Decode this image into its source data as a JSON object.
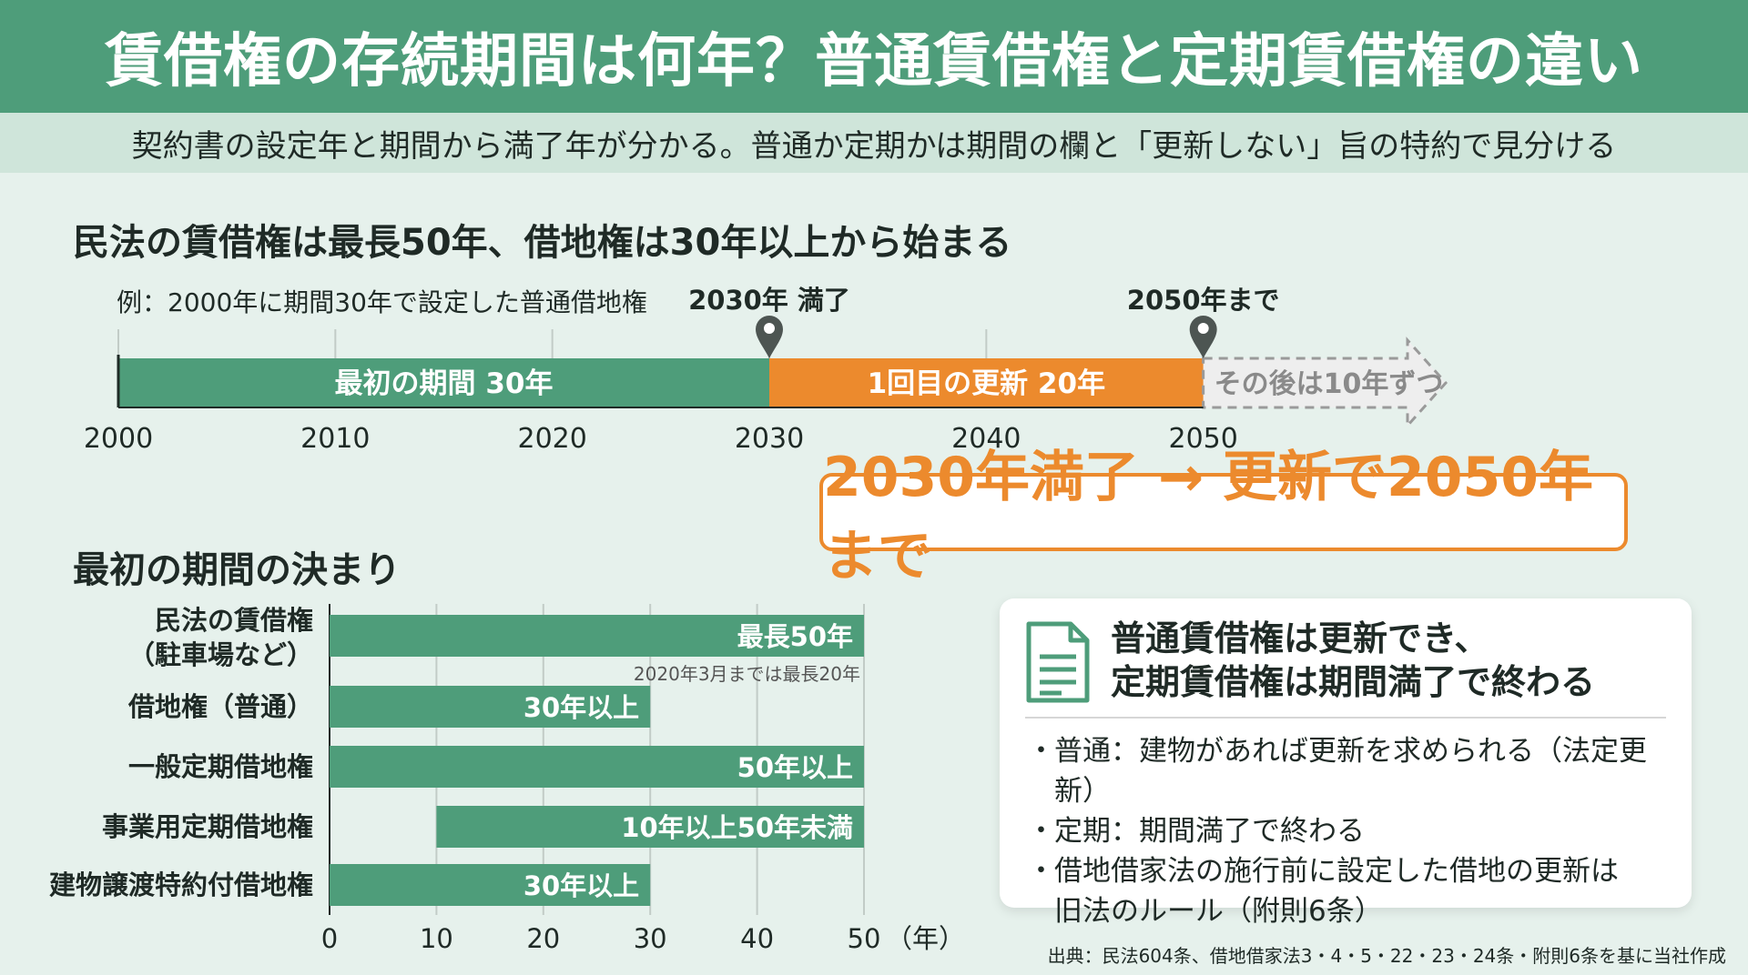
{
  "header": {
    "title": "賃借権の存続期間は何年？普通賃借権と定期賃借権の違い",
    "subtitle": "契約書の設定年と期間から満了年が分かる。普通か定期かは期間の欄と「更新しない」旨の特約で見分ける"
  },
  "timeline": {
    "section_title": "民法の賃借権は最長50年、借地権は30年以上から始まる",
    "example_label": "例：2000年に期間30年で設定した普通借地権",
    "marker_1_label": "2030年 満了",
    "marker_2_label": "2050年まで",
    "callout": "2030年満了 → 更新で2050年まで"
  },
  "bars_section": {
    "section_title": "最初の期間の決まり"
  },
  "chart_data": [
    {
      "type": "bar",
      "orientation": "horizontal-timeline",
      "xlim": [
        2000,
        2060
      ],
      "x_ticks": [
        2000,
        2010,
        2020,
        2030,
        2040,
        2050
      ],
      "segments": [
        {
          "label": "最初の期間 30年",
          "start": 2000,
          "end": 2030,
          "color": "#4e9d7a"
        },
        {
          "label": "1回目の更新 20年",
          "start": 2030,
          "end": 2050,
          "color": "#ec8a2d"
        },
        {
          "label": "その後は10年ずつ",
          "start": 2050,
          "end": 2060,
          "color": "#d9d9d9",
          "style": "dashed-arrow"
        }
      ],
      "markers": [
        2030,
        2050
      ]
    },
    {
      "type": "bar",
      "orientation": "horizontal",
      "categories": [
        "民法の賃借権\n（駐車場など）",
        "借地権（普通）",
        "一般定期借地権",
        "事業用定期借地権",
        "建物譲渡特約付借地権"
      ],
      "category_lines": [
        [
          "民法の賃借権",
          "（駐車場など）"
        ],
        [
          "借地権（普通）"
        ],
        [
          "一般定期借地権"
        ],
        [
          "事業用定期借地権"
        ],
        [
          "建物譲渡特約付借地権"
        ]
      ],
      "ranges": [
        [
          0,
          50
        ],
        [
          0,
          30
        ],
        [
          0,
          50
        ],
        [
          10,
          50
        ],
        [
          0,
          30
        ]
      ],
      "value_labels": [
        "最長50年",
        "30年以上",
        "50年以上",
        "10年以上50年未満",
        "30年以上"
      ],
      "notes": [
        "2020年3月までは最長20年",
        "",
        "",
        "",
        ""
      ],
      "xlim": [
        0,
        50
      ],
      "x_ticks": [
        0,
        10,
        20,
        30,
        40,
        50
      ],
      "x_unit": "（年）",
      "grid": true,
      "color": "#4e9d7a"
    }
  ],
  "card": {
    "icon": "document-icon",
    "title_line1": "普通賃借権は更新でき、",
    "title_line2": "定期賃借権は期間満了で終わる",
    "items": [
      "普通：建物があれば更新を求められる（法定更新）",
      "定期：期間満了で終わる",
      "借地借家法の施行前に設定した借地の更新は\n旧法のルール（附則6条）"
    ]
  },
  "source": "出典：民法604条、借地借家法3・4・5・22・23・24条・附則6条を基に当社作成"
}
